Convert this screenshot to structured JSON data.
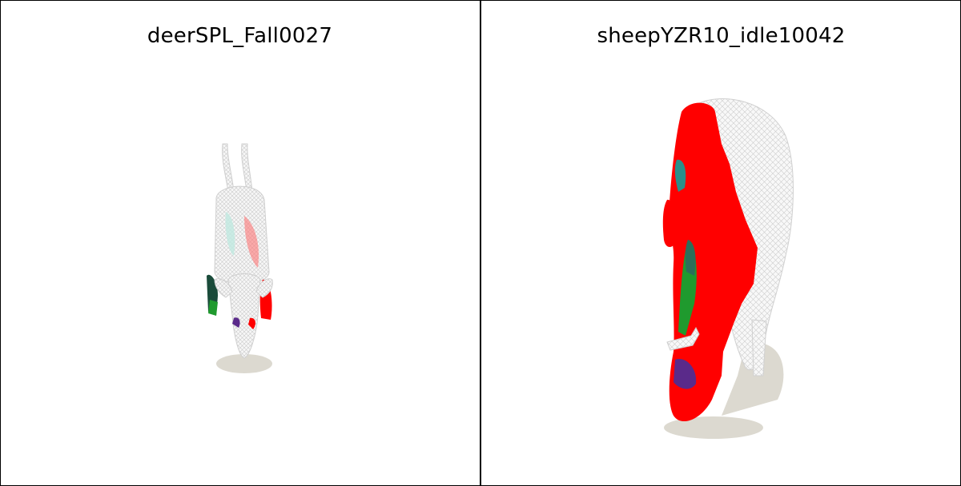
{
  "panels": [
    {
      "title": "deerSPL_Fall0027",
      "subject": "deer"
    },
    {
      "title": "sheepYZR10_idle10042",
      "subject": "sheep"
    }
  ],
  "colors": {
    "background": "#ffffff",
    "border": "#000000",
    "wireframe": "#d9d9d9",
    "red": "#ff0000",
    "green": "#1f9a2e",
    "teal": "#2a8f8a",
    "purple": "#5a2a8a",
    "shadow": "#dcd9d0"
  }
}
